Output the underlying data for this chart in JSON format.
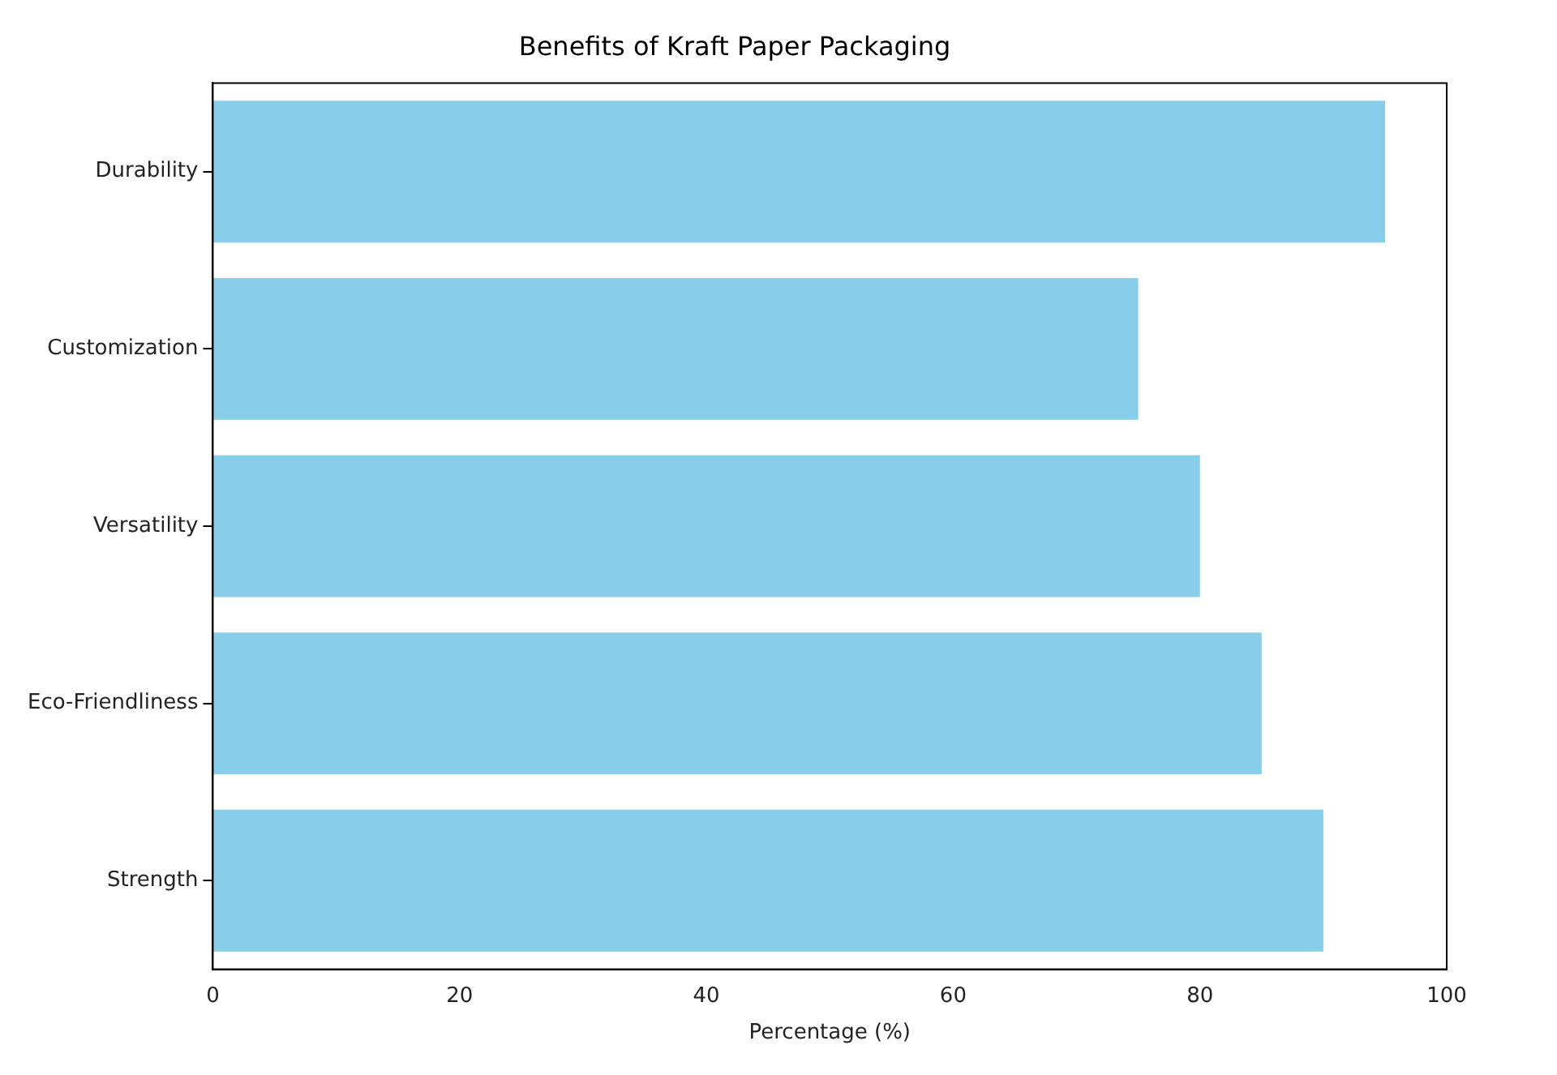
{
  "chart_data": {
    "type": "bar",
    "orientation": "horizontal",
    "title": "Benefits of Kraft Paper Packaging",
    "xlabel": "Percentage (%)",
    "categories": [
      "Durability",
      "Customization",
      "Versatility",
      "Eco-Friendliness",
      "Strength"
    ],
    "values": [
      95,
      75,
      80,
      85,
      90
    ],
    "color": "#87ceeb",
    "xlim": [
      0,
      100
    ],
    "xticks": [
      0,
      20,
      40,
      60,
      80,
      100
    ],
    "grid": false,
    "legend": false
  }
}
